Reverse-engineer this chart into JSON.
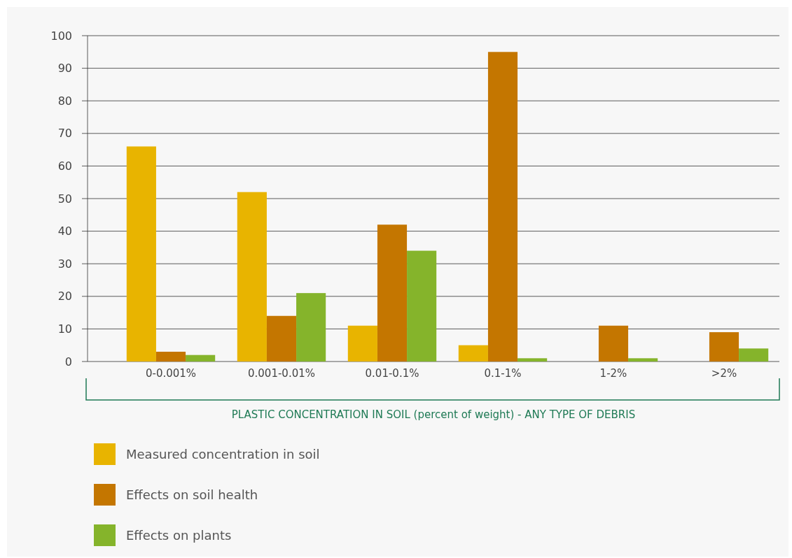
{
  "chart_data": {
    "type": "bar",
    "xlabel": "PLASTIC CONCENTRATION IN SOIL (percent of weight) - ANY TYPE OF DEBRIS",
    "categories": [
      "0-0.001%",
      "0.001-0.01%",
      "0.01-0.1%",
      "0.1-1%",
      "1-2%",
      ">2%"
    ],
    "series": [
      {
        "name": "Measured concentration in soil",
        "color": "#e8b400",
        "values": [
          66,
          52,
          11,
          5,
          null,
          null
        ]
      },
      {
        "name": "Effects on soil health",
        "color": "#c47600",
        "values": [
          3,
          14,
          42,
          95,
          11,
          9
        ]
      },
      {
        "name": "Effects on plants",
        "color": "#85b42b",
        "values": [
          2,
          21,
          34,
          1,
          1,
          4
        ]
      }
    ],
    "ylim": [
      0,
      100
    ],
    "yticks": [
      0,
      10,
      20,
      30,
      40,
      50,
      60,
      70,
      80,
      90,
      100
    ],
    "grid": "y",
    "legend": "bottom"
  }
}
